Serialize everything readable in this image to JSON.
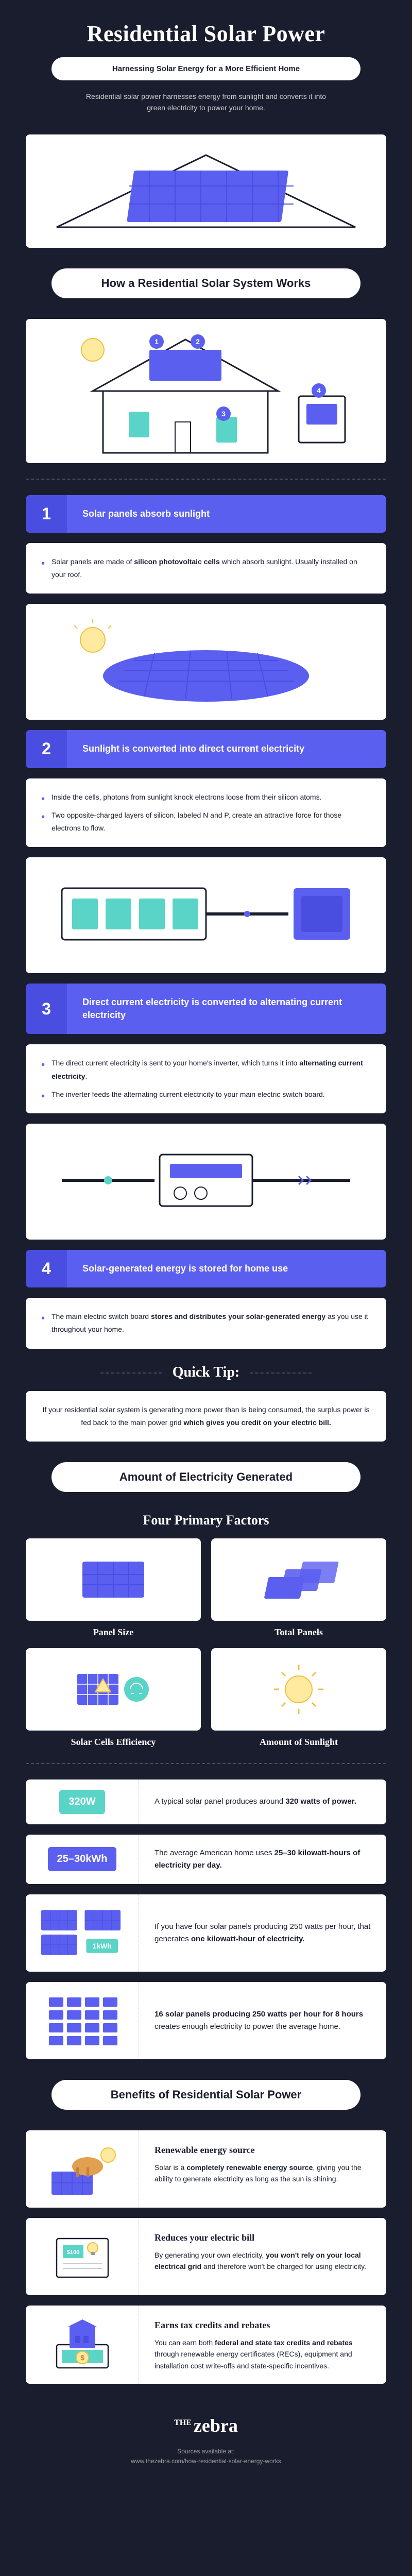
{
  "colors": {
    "bg": "#1a1d2e",
    "accent": "#5b5ff0",
    "accent_dark": "#4a4ee0",
    "teal": "#5bd4c8",
    "white": "#ffffff",
    "text_muted": "#cccccc",
    "divider": "#4a4d5e"
  },
  "header": {
    "title": "Residential Solar Power",
    "subtitle": "Harnessing Solar Energy for a More Efficient Home",
    "intro": "Residential solar power harnesses energy from sunlight and converts it into green electricity to power your home."
  },
  "sections": {
    "how_it_works": "How a Residential Solar System Works",
    "electricity_generated": "Amount of Electricity Generated",
    "benefits": "Benefits of Residential Solar Power",
    "quick_tip": "Quick Tip:",
    "four_factors": "Four Primary Factors"
  },
  "steps": [
    {
      "num": "1",
      "title": "Solar panels absorb sunlight",
      "bullets": [
        "Solar panels are made of <strong>silicon photovoltaic cells</strong> which absorb sunlight. Usually installed on your roof."
      ]
    },
    {
      "num": "2",
      "title": "Sunlight is converted into direct current electricity",
      "bullets": [
        "Inside the cells, photons from sunlight knock electrons loose from their silicon atoms.",
        "Two opposite-charged layers of silicon, labeled N and P, create an attractive force for those electrons to flow."
      ]
    },
    {
      "num": "3",
      "title": "Direct current electricity is converted to alternating current electricity",
      "bullets": [
        "The direct current electricity is sent to your home's inverter, which turns it into <strong>alternating current electricity</strong>.",
        "The inverter feeds the alternating current electricity to your main electric switch board."
      ]
    },
    {
      "num": "4",
      "title": "Solar-generated energy is stored for home use",
      "bullets": [
        "The main electric switch board <strong>stores and distributes your solar-generated energy</strong> as you use it throughout your home."
      ]
    }
  ],
  "quick_tip_text": "If your residential solar system is generating more power than is being consumed, the surplus power is fed back to the main power grid <strong>which gives you credit on your electric bill.</strong>",
  "factors": [
    {
      "label": "Panel Size"
    },
    {
      "label": "Total Panels"
    },
    {
      "label": "Solar Cells Efficiency"
    },
    {
      "label": "Amount of Sunlight"
    }
  ],
  "info_rows": [
    {
      "badge": "320W",
      "badge_color": "teal",
      "text": "A typical solar panel produces around <strong>320 watts of power.</strong>"
    },
    {
      "badge": "25–30kWh",
      "badge_color": "purple",
      "text": "The average American home uses <strong>25–30 kilowatt-hours of electricity per day.</strong>"
    },
    {
      "badge": "1kWh",
      "badge_color": "teal",
      "text": "If you have four solar panels producing 250 watts per hour, that generates <strong>one kilowatt-hour of electricity.</strong>"
    },
    {
      "badge": "grid",
      "badge_color": "grid",
      "text": "<strong>16 solar panels producing 250 watts per hour for 8 hours</strong> creates enough electricity to power the average home."
    }
  ],
  "benefits_list": [
    {
      "title": "Renewable energy source",
      "text": "Solar is a <strong>completely renewable energy source</strong>, giving you the ability to generate electricity as long as the sun is shining."
    },
    {
      "title": "Reduces your electric bill",
      "text": "By generating your own electricity, <strong>you won't rely on your local electrical grid</strong> and therefore won't be charged for using electricity."
    },
    {
      "title": "Earns tax credits and rebates",
      "text": "You can earn both <strong>federal and state tax credits and rebates</strong> through renewable energy certificates (RECs), equipment and installation cost write-offs and state-specific incentives."
    }
  ],
  "footer": {
    "logo_prefix": "THE",
    "logo_main": "zebra",
    "sources_label": "Sources available at:",
    "sources_url": "www.thezebra.com/how-residential-solar-energy-works"
  }
}
